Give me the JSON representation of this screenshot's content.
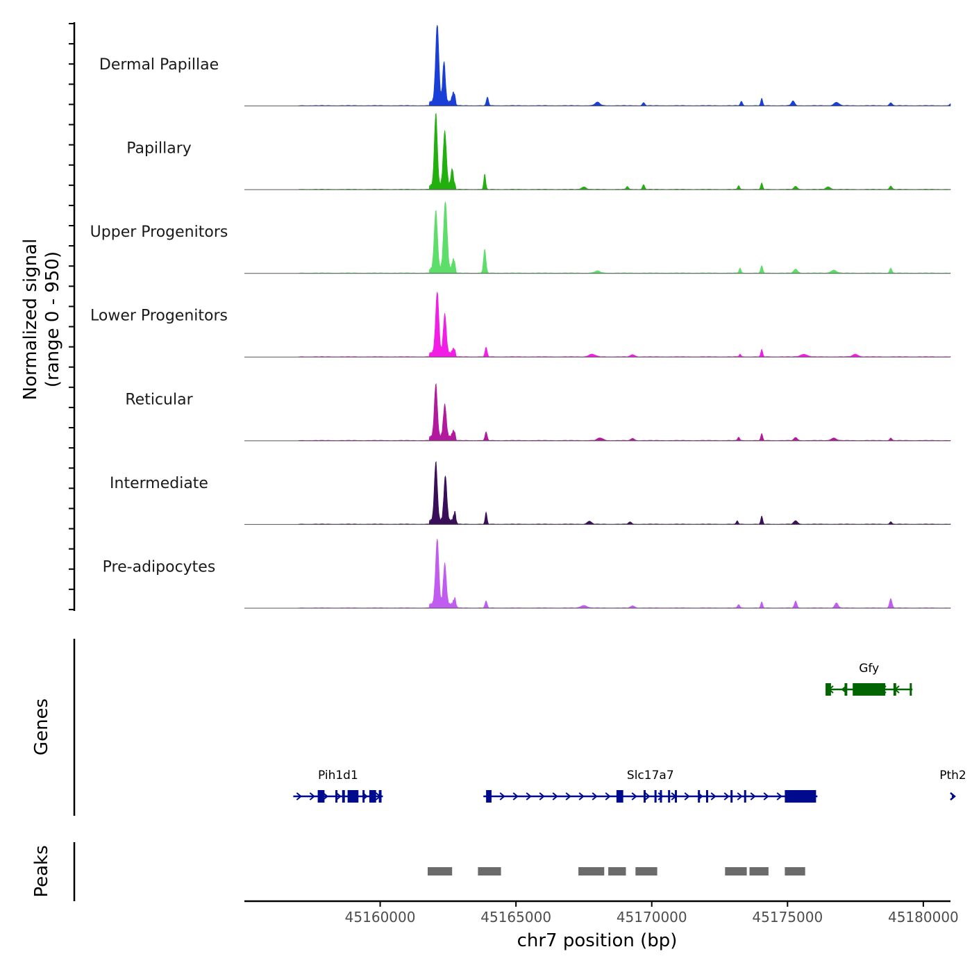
{
  "chart_data": {
    "type": "area",
    "title": "",
    "ylabel_line1": "Normalized signal",
    "ylabel_line2": "(range 0 - 950)",
    "ylim": [
      0,
      950
    ],
    "xlabel": "chr7 position (bp)",
    "xlim": [
      45155000,
      45181000
    ],
    "xticks": [
      45160000,
      45165000,
      45170000,
      45175000,
      45180000
    ],
    "signal_x_range": [
      45157000,
      45181000
    ],
    "tracks": [
      {
        "name": "Dermal Papillae",
        "color": "#1a3fd6",
        "peaks": [
          [
            45162100,
            920,
            60
          ],
          [
            45162350,
            480,
            50
          ],
          [
            45162700,
            110,
            55
          ],
          [
            45163950,
            100,
            40
          ],
          [
            45168000,
            40,
            90
          ],
          [
            45169700,
            35,
            45
          ],
          [
            45173300,
            50,
            40
          ],
          [
            45174050,
            85,
            35
          ],
          [
            45175200,
            55,
            60
          ],
          [
            45176800,
            40,
            90
          ],
          [
            45178800,
            35,
            50
          ],
          [
            45181000,
            20,
            40
          ]
        ]
      },
      {
        "name": "Papillary",
        "color": "#22b00f",
        "peaks": [
          [
            45162050,
            850,
            55
          ],
          [
            45162380,
            640,
            60
          ],
          [
            45162650,
            200,
            45
          ],
          [
            45163850,
            180,
            35
          ],
          [
            45167500,
            30,
            80
          ],
          [
            45169100,
            35,
            40
          ],
          [
            45169700,
            55,
            40
          ],
          [
            45173200,
            45,
            35
          ],
          [
            45174050,
            75,
            35
          ],
          [
            45175300,
            35,
            60
          ],
          [
            45176500,
            30,
            80
          ],
          [
            45178800,
            40,
            45
          ]
        ]
      },
      {
        "name": "Upper Progenitors",
        "color": "#5ddd6a",
        "peaks": [
          [
            45162050,
            690,
            60
          ],
          [
            45162400,
            800,
            65
          ],
          [
            45162700,
            120,
            50
          ],
          [
            45163850,
            280,
            45
          ],
          [
            45168000,
            25,
            100
          ],
          [
            45173250,
            60,
            35
          ],
          [
            45174050,
            85,
            40
          ],
          [
            45175300,
            45,
            70
          ],
          [
            45176700,
            35,
            100
          ],
          [
            45178800,
            60,
            40
          ]
        ]
      },
      {
        "name": "Lower Progenitors",
        "color": "#f21ee6",
        "peaks": [
          [
            45162100,
            720,
            60
          ],
          [
            45162380,
            460,
            55
          ],
          [
            45162700,
            50,
            50
          ],
          [
            45163900,
            110,
            40
          ],
          [
            45167800,
            30,
            120
          ],
          [
            45169300,
            25,
            80
          ],
          [
            45173250,
            30,
            35
          ],
          [
            45174050,
            85,
            35
          ],
          [
            45175600,
            30,
            120
          ],
          [
            45177500,
            30,
            100
          ]
        ]
      },
      {
        "name": "Reticular",
        "color": "#b21a9e",
        "peaks": [
          [
            45162050,
            620,
            55
          ],
          [
            45162380,
            380,
            55
          ],
          [
            45162700,
            70,
            50
          ],
          [
            45163900,
            100,
            40
          ],
          [
            45168100,
            30,
            100
          ],
          [
            45169300,
            25,
            60
          ],
          [
            45173200,
            40,
            35
          ],
          [
            45174050,
            80,
            35
          ],
          [
            45175300,
            35,
            60
          ],
          [
            45176700,
            30,
            90
          ],
          [
            45178800,
            30,
            40
          ]
        ]
      },
      {
        "name": "Intermediate",
        "color": "#3a0f5a",
        "peaks": [
          [
            45162050,
            690,
            55
          ],
          [
            45162400,
            530,
            55
          ],
          [
            45162750,
            100,
            45
          ],
          [
            45163900,
            140,
            35
          ],
          [
            45167700,
            35,
            80
          ],
          [
            45169200,
            25,
            60
          ],
          [
            45173150,
            40,
            35
          ],
          [
            45174050,
            95,
            35
          ],
          [
            45175300,
            40,
            70
          ],
          [
            45178800,
            30,
            40
          ]
        ]
      },
      {
        "name": "Pre-adipocytes",
        "color": "#c05cf0",
        "peaks": [
          [
            45162100,
            770,
            60
          ],
          [
            45162380,
            480,
            55
          ],
          [
            45162750,
            70,
            50
          ],
          [
            45163900,
            80,
            40
          ],
          [
            45167500,
            30,
            110
          ],
          [
            45169300,
            25,
            70
          ],
          [
            45173200,
            40,
            40
          ],
          [
            45174050,
            70,
            35
          ],
          [
            45175300,
            80,
            45
          ],
          [
            45176800,
            60,
            60
          ],
          [
            45178800,
            110,
            45
          ]
        ]
      }
    ],
    "genes": [
      {
        "name": "Pih1d1",
        "strand": "+",
        "color": "#000a8c",
        "row": 2,
        "start": 45156800,
        "end": 45160100,
        "exons": [
          [
            45157700,
            45157950
          ],
          [
            45158350,
            45158420
          ],
          [
            45158600,
            45158700
          ],
          [
            45158800,
            45159200
          ],
          [
            45159350,
            45159420
          ],
          [
            45159600,
            45159850
          ],
          [
            45159950,
            45160050
          ]
        ]
      },
      {
        "name": "Slc17a7",
        "strand": "+",
        "color": "#000a8c",
        "row": 2,
        "start": 45163800,
        "end": 45176100,
        "exons": [
          [
            45163900,
            45164100
          ],
          [
            45168700,
            45168950
          ],
          [
            45169700,
            45169760
          ],
          [
            45170100,
            45170160
          ],
          [
            45170300,
            45170360
          ],
          [
            45170600,
            45170650
          ],
          [
            45170850,
            45170900
          ],
          [
            45171700,
            45171750
          ],
          [
            45172000,
            45172060
          ],
          [
            45172900,
            45172960
          ],
          [
            45173400,
            45173460
          ],
          [
            45174900,
            45176050
          ]
        ]
      },
      {
        "name": "Pth2",
        "strand": "+",
        "color": "#000a8c",
        "row": 2,
        "start": 45181050,
        "end": 45181130,
        "exons": []
      },
      {
        "name": "Gfy",
        "strand": "-",
        "color": "#006400",
        "row": 1,
        "start": 45176400,
        "end": 45179600,
        "exons": [
          [
            45176400,
            45176600
          ],
          [
            45177100,
            45177200
          ],
          [
            45177400,
            45178600
          ],
          [
            45178900,
            45179000
          ],
          [
            45179500,
            45179560
          ]
        ]
      }
    ],
    "peaks_track": {
      "label": "Peaks",
      "color": "#6b6b6b",
      "regions": [
        [
          45161750,
          45162650
        ],
        [
          45163600,
          45164450
        ],
        [
          45167300,
          45168250
        ],
        [
          45168400,
          45169050
        ],
        [
          45169400,
          45170200
        ],
        [
          45172700,
          45173500
        ],
        [
          45173600,
          45174300
        ],
        [
          45174900,
          45175650
        ]
      ]
    },
    "genes_label": "Genes"
  }
}
